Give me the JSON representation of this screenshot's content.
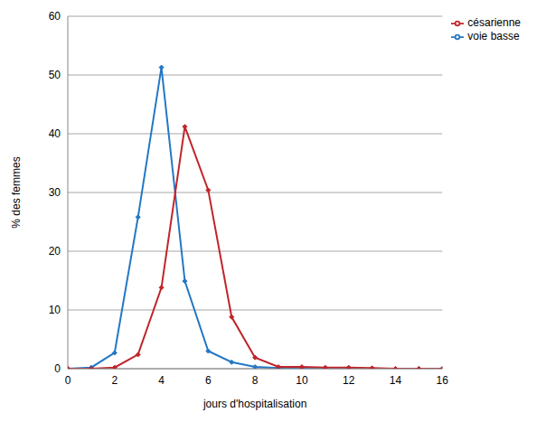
{
  "chart_data": {
    "type": "line",
    "xlabel": "jours d'hospitalisation",
    "ylabel": "% des femmes",
    "x": [
      0,
      1,
      2,
      3,
      4,
      5,
      6,
      7,
      8,
      9,
      10,
      11,
      12,
      13,
      14,
      15,
      16
    ],
    "series": [
      {
        "name": "voie basse",
        "color": "#2477c4",
        "marker": "diamond",
        "values": [
          0,
          0.2,
          2.7,
          25.8,
          51.3,
          14.9,
          3.0,
          1.1,
          0.3,
          0.1,
          0.1,
          0,
          0,
          0,
          0,
          0,
          0
        ]
      },
      {
        "name": "césarienne",
        "color": "#c0252a",
        "marker": "diamond",
        "values": [
          0,
          0,
          0.2,
          2.4,
          13.8,
          41.2,
          30.4,
          8.8,
          1.9,
          0.3,
          0.3,
          0.2,
          0.2,
          0.1,
          0,
          0,
          0
        ]
      }
    ],
    "xlim": [
      0,
      16
    ],
    "xticks": [
      0,
      2,
      4,
      6,
      8,
      10,
      12,
      14,
      16
    ],
    "ylim": [
      0,
      60
    ],
    "yticks": [
      0,
      10,
      20,
      30,
      40,
      50,
      60
    ],
    "grid": true,
    "legend": "top-right"
  }
}
